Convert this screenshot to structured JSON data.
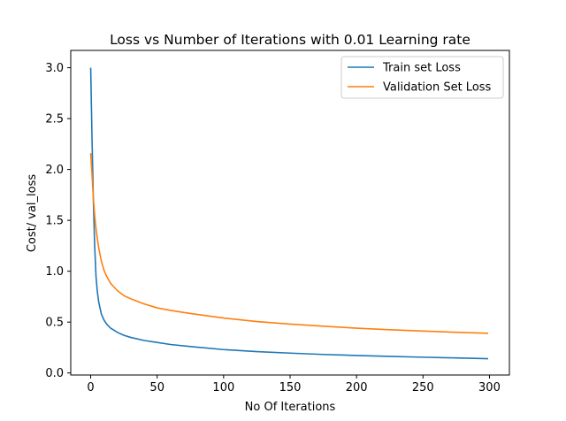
{
  "chart_data": {
    "type": "line",
    "title": "Loss vs Number of Iterations with 0.01 Learning rate",
    "xlabel": "No Of Iterations",
    "ylabel": "Cost/ val_loss",
    "xlim": [
      -15,
      315
    ],
    "ylim": [
      -0.02,
      3.17
    ],
    "xticks": [
      0,
      50,
      100,
      150,
      200,
      250,
      300
    ],
    "xtick_labels": [
      "0",
      "50",
      "100",
      "150",
      "200",
      "250",
      "300"
    ],
    "yticks": [
      0.0,
      0.5,
      1.0,
      1.5,
      2.0,
      2.5,
      3.0
    ],
    "ytick_labels": [
      "0.0",
      "0.5",
      "1.0",
      "1.5",
      "2.0",
      "2.5",
      "3.0"
    ],
    "grid": false,
    "legend_position": "top-right",
    "x": [
      0,
      1,
      2,
      3,
      4,
      5,
      6,
      8,
      10,
      12,
      15,
      20,
      25,
      30,
      40,
      50,
      60,
      75,
      100,
      125,
      150,
      175,
      200,
      225,
      250,
      275,
      299
    ],
    "series": [
      {
        "name": "Train set Loss",
        "color": "#1f77b4",
        "values": [
          3.0,
          2.3,
          1.7,
          1.25,
          0.95,
          0.8,
          0.7,
          0.58,
          0.52,
          0.48,
          0.44,
          0.4,
          0.37,
          0.35,
          0.32,
          0.3,
          0.28,
          0.26,
          0.23,
          0.21,
          0.195,
          0.182,
          0.172,
          0.163,
          0.155,
          0.148,
          0.14
        ]
      },
      {
        "name": "Validation Set Loss",
        "color": "#ff7f0e",
        "values": [
          2.16,
          1.95,
          1.72,
          1.55,
          1.42,
          1.32,
          1.23,
          1.1,
          1.01,
          0.95,
          0.88,
          0.81,
          0.76,
          0.73,
          0.68,
          0.64,
          0.615,
          0.585,
          0.54,
          0.505,
          0.48,
          0.46,
          0.44,
          0.425,
          0.412,
          0.4,
          0.39
        ]
      }
    ]
  }
}
